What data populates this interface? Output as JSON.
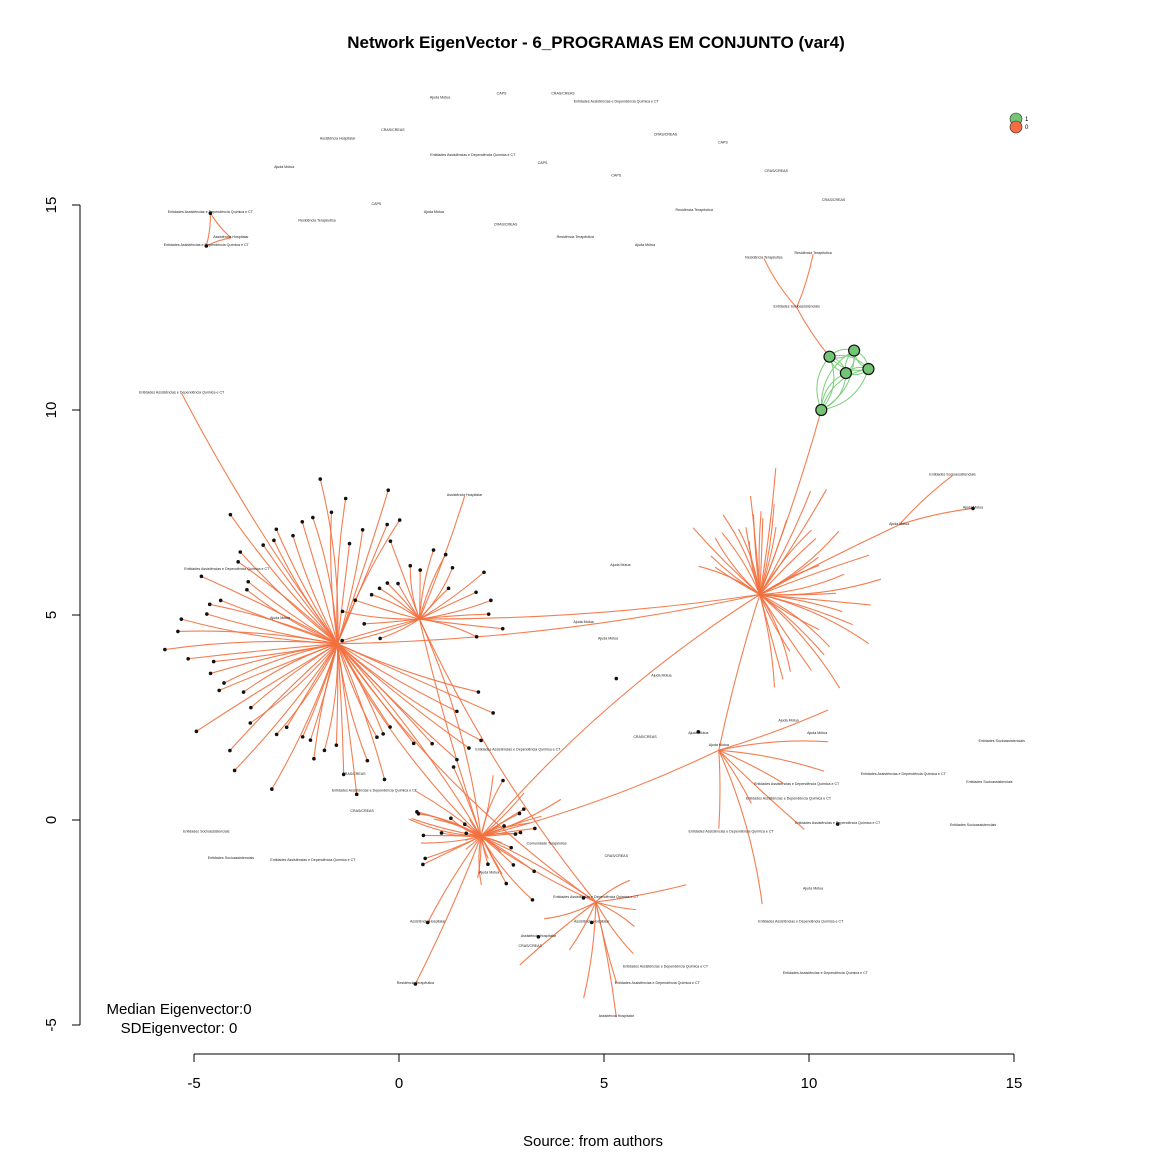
{
  "title": "Network EigenVector - 6_PROGRAMAS EM CONJUNTO (var4)",
  "source": "Source: from authors",
  "stats": {
    "median": "Median Eigenvector:0",
    "sd": "SDEigenvector: 0"
  },
  "colors": {
    "edge_main": "#f2703e",
    "edge_cluster": "#7ccf7a",
    "node_orange": "#f46d43",
    "node_green": "#74c476"
  },
  "legend": [
    {
      "label": "1",
      "color": "#74c476"
    },
    {
      "label": "0",
      "color": "#f46d43"
    }
  ],
  "chart_data": {
    "type": "network",
    "title": "Network EigenVector - 6_PROGRAMAS EM CONJUNTO (var4)",
    "xlabel": "",
    "ylabel": "",
    "xlim": [
      -5,
      15
    ],
    "ylim": [
      -5,
      15
    ],
    "x_ticks": [
      "-5",
      "0",
      "5",
      "10",
      "15"
    ],
    "y_ticks": [
      "-5",
      "0",
      "5",
      "10",
      "15"
    ],
    "hubs": [
      {
        "id": "h1",
        "x": -1.5,
        "y": 4.3
      },
      {
        "id": "h2",
        "x": 0.5,
        "y": 4.9
      },
      {
        "id": "h3",
        "x": 8.8,
        "y": 5.5
      },
      {
        "id": "h4",
        "x": 2.0,
        "y": -0.4
      },
      {
        "id": "h5",
        "x": 4.8,
        "y": -2.0
      },
      {
        "id": "h6",
        "x": 7.8,
        "y": 1.7
      }
    ],
    "green_cluster": [
      {
        "x": 10.5,
        "y": 11.3
      },
      {
        "x": 11.1,
        "y": 11.45
      },
      {
        "x": 11.45,
        "y": 11.0
      },
      {
        "x": 10.9,
        "y": 10.9
      },
      {
        "x": 10.3,
        "y": 10.0
      }
    ],
    "labels": [
      {
        "text": "Ajuda Mútua",
        "x": 1.0,
        "y": 17.6
      },
      {
        "text": "CAPS",
        "x": 2.5,
        "y": 17.7
      },
      {
        "text": "CRAS/CREAS",
        "x": 4.0,
        "y": 17.7
      },
      {
        "text": "Entidades Assistências e Dependência Química e CT",
        "x": 5.3,
        "y": 17.5
      },
      {
        "text": "Assistência Hospitalar",
        "x": -1.5,
        "y": 16.6
      },
      {
        "text": "CRAS/CREAS",
        "x": -0.15,
        "y": 16.8
      },
      {
        "text": "CRAS/CREAS",
        "x": 6.5,
        "y": 16.7
      },
      {
        "text": "CAPS",
        "x": 7.9,
        "y": 16.5
      },
      {
        "text": "Entidades Assistências e Dependência Química e CT",
        "x": 1.8,
        "y": 16.2
      },
      {
        "text": "Ajuda Mútua",
        "x": -2.8,
        "y": 15.9
      },
      {
        "text": "CAPS",
        "x": 3.5,
        "y": 16.0
      },
      {
        "text": "CAPS",
        "x": 5.3,
        "y": 15.7
      },
      {
        "text": "CRAS/CREAS",
        "x": 9.2,
        "y": 15.8
      },
      {
        "text": "CAPS",
        "x": -0.55,
        "y": 15.0
      },
      {
        "text": "Ajuda Mútua",
        "x": 0.85,
        "y": 14.8
      },
      {
        "text": "Residência Terapêutica",
        "x": -2.0,
        "y": 14.6
      },
      {
        "text": "CRAS/CREAS",
        "x": 2.6,
        "y": 14.5
      },
      {
        "text": "Residência Terapêutica",
        "x": 7.2,
        "y": 14.85
      },
      {
        "text": "CRAS/CREAS",
        "x": 10.6,
        "y": 15.1
      },
      {
        "text": "Residência Terapêutica",
        "x": 4.3,
        "y": 14.2
      },
      {
        "text": "Ajuda Mútua",
        "x": 6.0,
        "y": 14.0
      },
      {
        "text": "Entidades Assistências e Dependência Química e CT",
        "x": -4.6,
        "y": 14.8
      },
      {
        "text": "Assistência Hospitalar",
        "x": -4.1,
        "y": 14.2
      },
      {
        "text": "Entidades Assistências e Dependência Química e CT",
        "x": -4.7,
        "y": 14.0
      },
      {
        "text": "Residência Terapêutica",
        "x": 8.9,
        "y": 13.7
      },
      {
        "text": "Residência Terapêutica",
        "x": 10.1,
        "y": 13.8
      },
      {
        "text": "Entidades Socioassistenciais",
        "x": 9.7,
        "y": 12.5
      },
      {
        "text": "Entidades Assistências e Dependência Química e CT",
        "x": -5.3,
        "y": 10.4
      },
      {
        "text": "Entidades Socioassistenciais",
        "x": 13.5,
        "y": 8.4
      },
      {
        "text": "Ajuda Mútua",
        "x": 12.2,
        "y": 7.2
      },
      {
        "text": "Ajuda Mútua",
        "x": 14.0,
        "y": 7.6
      },
      {
        "text": "Assistência Hospitalar",
        "x": 1.6,
        "y": 7.9
      },
      {
        "text": "Entidades Assistências e Dependência Química e CT",
        "x": -4.2,
        "y": 6.1
      },
      {
        "text": "Ajuda Mútua",
        "x": 5.4,
        "y": 6.2
      },
      {
        "text": "Ajuda Mútua",
        "x": -2.9,
        "y": 4.9
      },
      {
        "text": "Ajuda Mútua",
        "x": 4.5,
        "y": 4.8
      },
      {
        "text": "Ajuda Mútua",
        "x": 5.1,
        "y": 4.4
      },
      {
        "text": "Ajuda Mútua",
        "x": 6.4,
        "y": 3.5
      },
      {
        "text": "CRAS/CREAS",
        "x": 6.0,
        "y": 2.0
      },
      {
        "text": "Ajuda Mútua",
        "x": 7.3,
        "y": 2.1
      },
      {
        "text": "Ajuda Mútua",
        "x": 7.8,
        "y": 1.8
      },
      {
        "text": "Ajuda Mútua",
        "x": 9.5,
        "y": 2.4
      },
      {
        "text": "Ajuda Mútua",
        "x": 10.2,
        "y": 2.1
      },
      {
        "text": "Entidades Socioassistenciais",
        "x": 14.7,
        "y": 1.9
      },
      {
        "text": "Entidades Assistências e Dependência Química e CT",
        "x": 12.3,
        "y": 1.1
      },
      {
        "text": "Entidades Socioassistenciais",
        "x": 14.4,
        "y": 0.9
      },
      {
        "text": "Entidades Assistências e Dependência Química e CT",
        "x": 9.7,
        "y": 0.85
      },
      {
        "text": "Entidades Assistências e Dependência Química e CT",
        "x": 9.5,
        "y": 0.5
      },
      {
        "text": "Entidades Assistências e Dependência Química e CT",
        "x": 10.7,
        "y": -0.1
      },
      {
        "text": "Entidades Assistências e Dependência Química e CT",
        "x": 8.1,
        "y": -0.3
      },
      {
        "text": "Entidades Socioassistenciais",
        "x": 14.0,
        "y": -0.15
      },
      {
        "text": "Entidades Assistências e Dependência Química e CT",
        "x": 2.9,
        "y": 1.7
      },
      {
        "text": "Entidades Assistências e Dependência Química e CT",
        "x": -0.6,
        "y": 0.7
      },
      {
        "text": "CRAS/CREAS",
        "x": -1.1,
        "y": 1.1
      },
      {
        "text": "CRAS/CREAS",
        "x": -0.9,
        "y": 0.2
      },
      {
        "text": "Entidades Socioassistenciais",
        "x": -4.7,
        "y": -0.3
      },
      {
        "text": "Entidades Socioassistenciais",
        "x": -4.1,
        "y": -0.95
      },
      {
        "text": "Entidades Assistências e Dependência Química e CT",
        "x": -2.1,
        "y": -1.0
      },
      {
        "text": "CRAS/CREAS",
        "x": 5.3,
        "y": -0.9
      },
      {
        "text": "Comunidade Terapêutica",
        "x": 3.6,
        "y": -0.6
      },
      {
        "text": "Entidades Assistências e Dependência Química e CT",
        "x": 4.8,
        "y": -1.9
      },
      {
        "text": "Assistência Hospitalar",
        "x": 4.7,
        "y": -2.5
      },
      {
        "text": "Assistência Hospitalar",
        "x": 3.4,
        "y": -2.85
      },
      {
        "text": "CRAS/CREAS",
        "x": 3.2,
        "y": -3.1
      },
      {
        "text": "Assistência Hospitalar",
        "x": 0.7,
        "y": -2.5
      },
      {
        "text": "Residência Terapêutica",
        "x": 0.4,
        "y": -4.0
      },
      {
        "text": "Entidades Assistências e Dependência Química e CT",
        "x": 6.5,
        "y": -3.6
      },
      {
        "text": "Entidades Assistências e Dependência Química e CT",
        "x": 6.3,
        "y": -4.0
      },
      {
        "text": "Assistência Hospitalar",
        "x": 5.3,
        "y": -4.8
      },
      {
        "text": "Entidades Assistências e Dependência Química e CT",
        "x": 9.8,
        "y": -2.5
      },
      {
        "text": "Entidades Assistências e Dependência Química e CT",
        "x": 10.4,
        "y": -3.75
      },
      {
        "text": "Ajuda Mútua",
        "x": 10.1,
        "y": -1.7
      },
      {
        "text": "Ajuda Mútua",
        "x": 2.2,
        "y": -1.3
      }
    ]
  }
}
